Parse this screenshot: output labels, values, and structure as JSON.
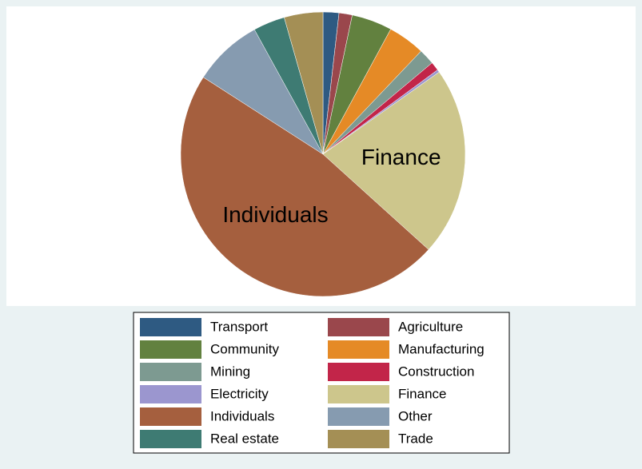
{
  "chart_data": {
    "type": "pie",
    "categories": [
      "Transport",
      "Agriculture",
      "Community",
      "Manufacturing",
      "Mining",
      "Construction",
      "Electricity",
      "Finance",
      "Individuals",
      "Other",
      "Real estate",
      "Trade"
    ],
    "values": [
      1.8,
      1.5,
      4.6,
      4.2,
      1.8,
      1.0,
      0.3,
      21.5,
      47.4,
      7.9,
      3.6,
      4.4
    ],
    "colors": [
      "#2e5a82",
      "#9a474c",
      "#62813f",
      "#e58a26",
      "#7d9a91",
      "#c22549",
      "#9b96cf",
      "#cdc68c",
      "#a55f3e",
      "#869bb0",
      "#3e7b73",
      "#a48f55"
    ],
    "legend": "bottom"
  }
}
